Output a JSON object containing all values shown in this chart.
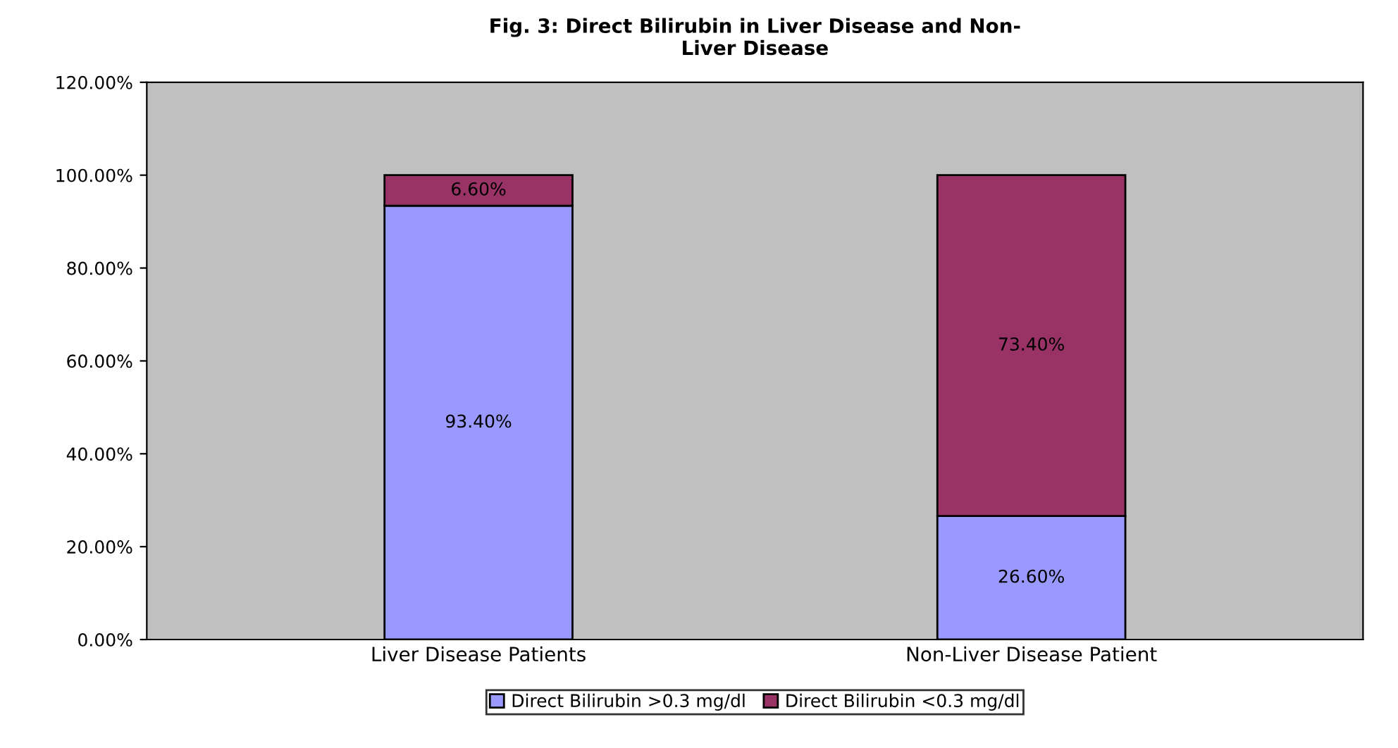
{
  "chart_data": {
    "type": "bar",
    "stacked": true,
    "title": "Fig. 3: Direct Bilirubin in Liver Disease and Non-\nLiver Disease",
    "categories": [
      "Liver Disease Patients",
      "Non-Liver Disease Patient"
    ],
    "series": [
      {
        "name": "Direct Bilirubin >0.3 mg/dl",
        "color": "#9999ff",
        "values": [
          93.4,
          26.6
        ],
        "value_labels": [
          "93.40%",
          "26.60%"
        ]
      },
      {
        "name": "Direct Bilirubin <0.3 mg/dl",
        "color": "#993366",
        "values": [
          6.6,
          73.4
        ],
        "value_labels": [
          "6.60%",
          "73.40%"
        ]
      }
    ],
    "ylim": [
      0,
      120
    ],
    "yticks": [
      {
        "value": 0,
        "label": "0.00%"
      },
      {
        "value": 20,
        "label": "20.00%"
      },
      {
        "value": 40,
        "label": "40.00%"
      },
      {
        "value": 60,
        "label": "60.00%"
      },
      {
        "value": 80,
        "label": "80.00%"
      },
      {
        "value": 100,
        "label": "100.00%"
      },
      {
        "value": 120,
        "label": "120.00%"
      }
    ],
    "grid": false,
    "legend": "bottom"
  }
}
